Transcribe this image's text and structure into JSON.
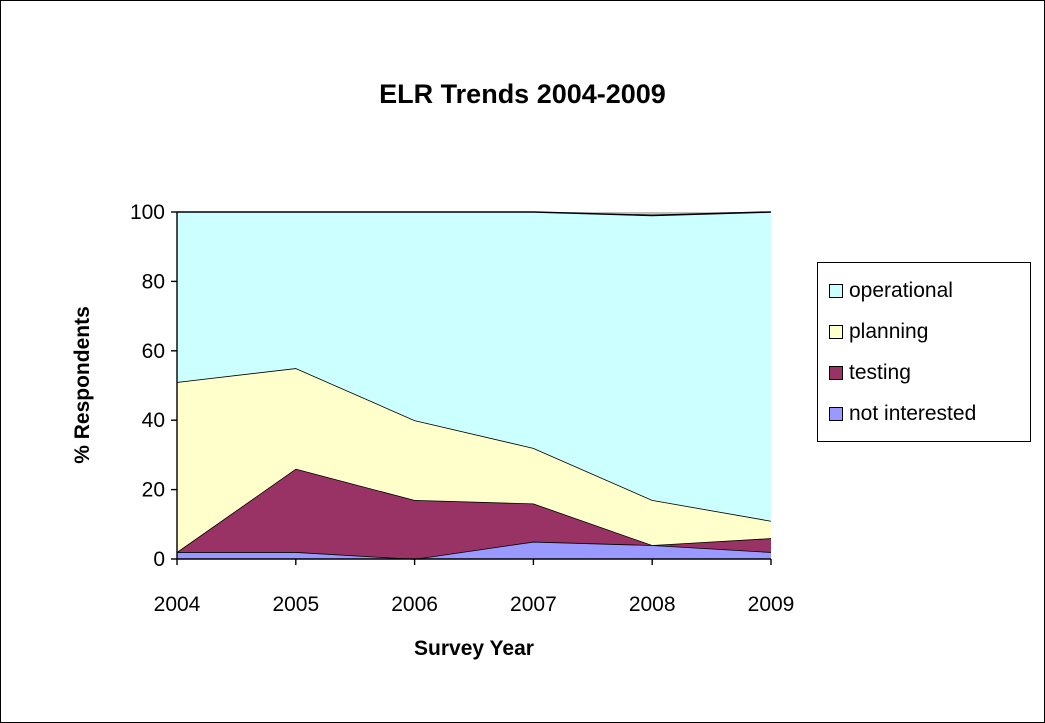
{
  "chart_data": {
    "type": "area",
    "stacked": true,
    "title": "ELR Trends 2004-2009",
    "xlabel": "Survey Year",
    "ylabel": "% Respondents",
    "categories": [
      "2004",
      "2005",
      "2006",
      "2007",
      "2008",
      "2009"
    ],
    "ylim": [
      0,
      100
    ],
    "yticks": [
      "0",
      "20",
      "40",
      "60",
      "80",
      "100"
    ],
    "legend_position": "right",
    "series": [
      {
        "name": "not interested",
        "color": "#9999ff",
        "values": [
          2,
          2,
          0,
          5,
          4,
          2
        ]
      },
      {
        "name": "testing",
        "color": "#993366",
        "values": [
          0,
          24,
          17,
          11,
          0,
          4
        ]
      },
      {
        "name": "planning",
        "color": "#ffffcc",
        "values": [
          49,
          29,
          23,
          16,
          13,
          5
        ]
      },
      {
        "name": "operational",
        "color": "#ccffff",
        "values": [
          49,
          45,
          60,
          68,
          82,
          89
        ]
      }
    ],
    "remainder_color": "#c0c0c0"
  }
}
